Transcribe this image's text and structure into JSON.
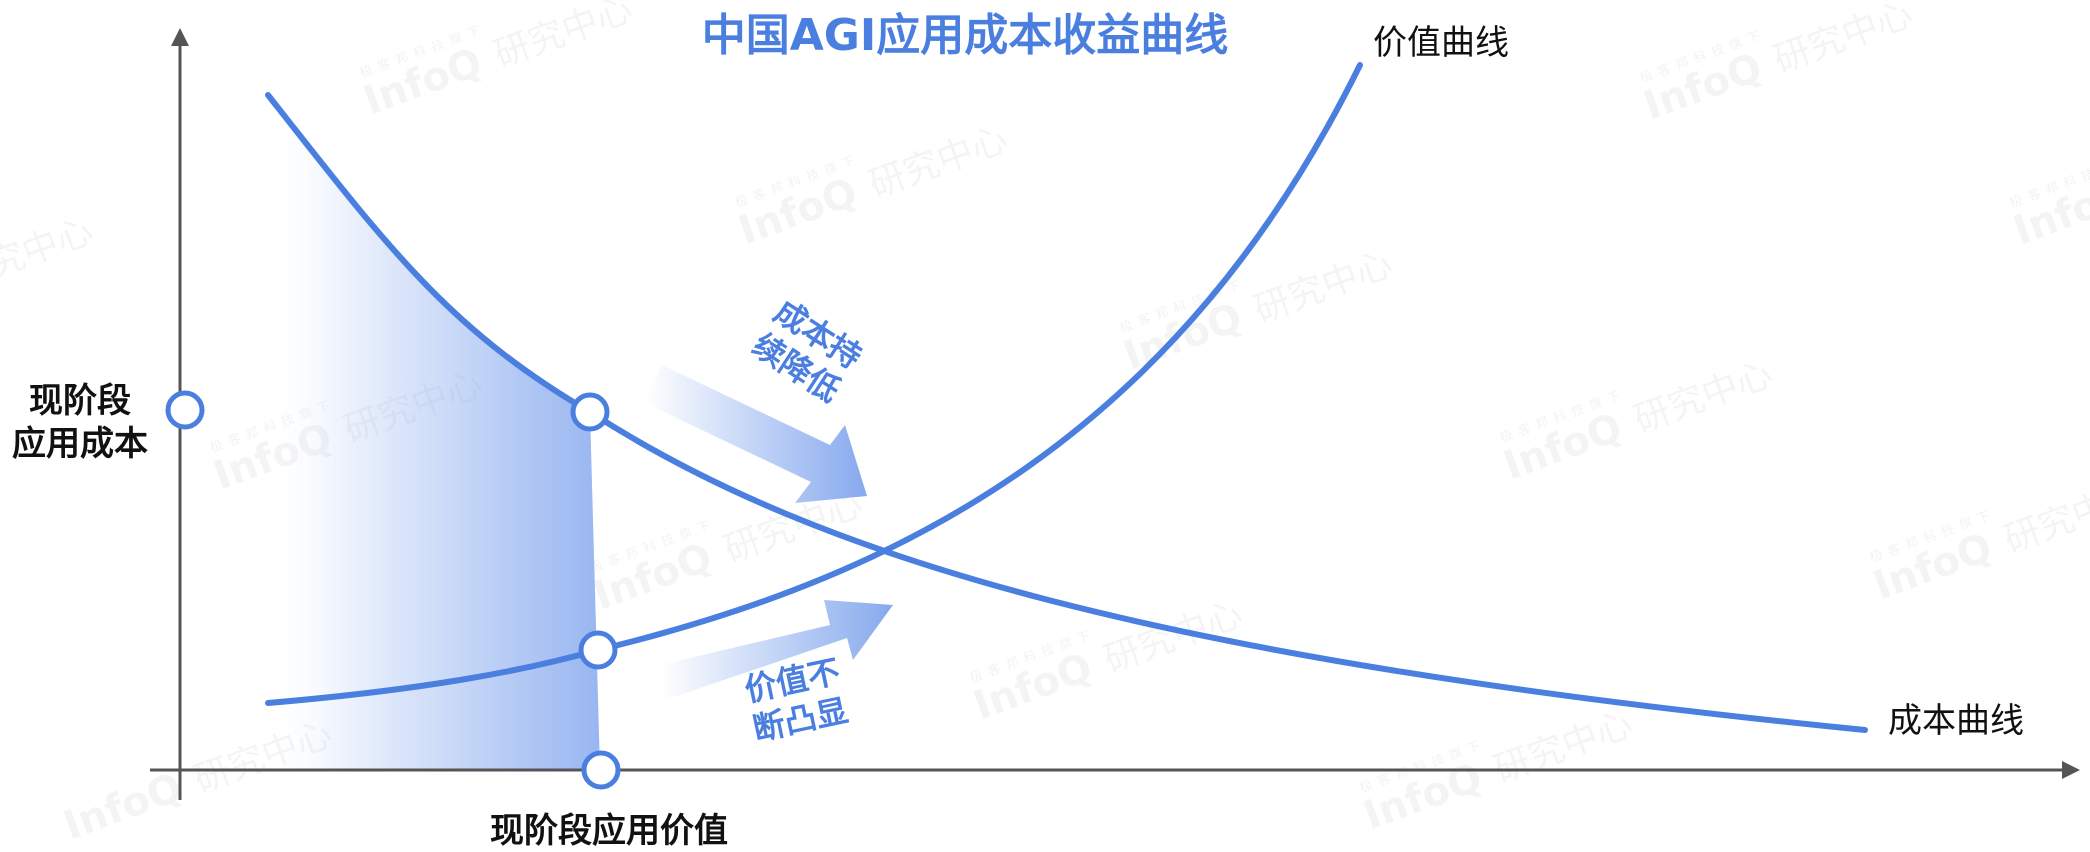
{
  "title": "中国AGI应用成本收益曲线",
  "colors": {
    "accent": "#4A7FE0",
    "axis": "#555555",
    "text": "#111111",
    "shade": "#86A9EE",
    "background": "#FFFFFF"
  },
  "curves": {
    "value_label": "价值曲线",
    "cost_label": "成本曲线"
  },
  "axis_labels": {
    "current_cost_line1": "现阶段",
    "current_cost_line2": "应用成本",
    "current_value": "现阶段应用价值"
  },
  "arrows": {
    "cost_line1": "成本持",
    "cost_line2": "续降低",
    "value_line1": "价值不",
    "value_line2": "断凸显"
  },
  "watermark": {
    "brand": "InfoQ",
    "org": "研究中心",
    "small": "极客邦科技旗下"
  }
}
